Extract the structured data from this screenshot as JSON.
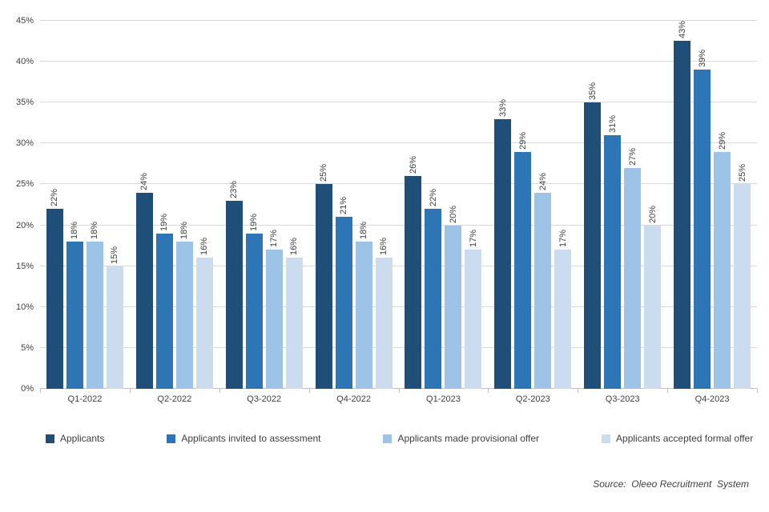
{
  "chart_data": {
    "type": "bar",
    "title": "",
    "categories": [
      "Q1-2022",
      "Q2-2022",
      "Q3-2022",
      "Q4-2022",
      "Q1-2023",
      "Q2-2023",
      "Q3-2023",
      "Q4-2023"
    ],
    "series": [
      {
        "name": "Applicants",
        "color": "#1F4E79",
        "values": [
          22,
          24,
          23,
          25,
          26,
          33,
          35,
          43
        ],
        "labels": [
          "22%",
          "24%",
          "23%",
          "25%",
          "26%",
          "33%",
          "35%",
          "43%"
        ]
      },
      {
        "name": "Applicants invited to assessment",
        "color": "#2E75B6",
        "values": [
          18,
          19,
          19,
          21,
          22,
          29,
          31,
          39
        ],
        "labels": [
          "18%",
          "19%",
          "19%",
          "21%",
          "22%",
          "29%",
          "31%",
          "39%"
        ]
      },
      {
        "name": "Applicants made provisional offer",
        "color": "#9DC3E6",
        "values": [
          18,
          18,
          17,
          18,
          20,
          24,
          27,
          29
        ],
        "labels": [
          "18%",
          "18%",
          "17%",
          "18%",
          "20%",
          "24%",
          "27%",
          "29%"
        ]
      },
      {
        "name": "Applicants accepted formal offer",
        "color": "#CCDCEF",
        "values": [
          15,
          16,
          16,
          16,
          17,
          17,
          20,
          25
        ],
        "labels": [
          "15%",
          "16%",
          "16%",
          "16%",
          "17%",
          "17%",
          "20%",
          "25%"
        ]
      }
    ],
    "ylim": [
      0,
      45
    ],
    "yticks": [
      {
        "value": 0,
        "label": "0%"
      },
      {
        "value": 5,
        "label": "5%"
      },
      {
        "value": 10,
        "label": "10%"
      },
      {
        "value": 15,
        "label": "15%"
      },
      {
        "value": 20,
        "label": "20%"
      },
      {
        "value": 25,
        "label": "25%"
      },
      {
        "value": 30,
        "label": "30%"
      },
      {
        "value": 35,
        "label": "35%"
      },
      {
        "value": 40,
        "label": "40%"
      },
      {
        "value": 45,
        "label": "45%"
      }
    ],
    "grid": true,
    "legend_position": "bottom"
  },
  "source_note": "Source:  Oleeo Recruitment  System"
}
